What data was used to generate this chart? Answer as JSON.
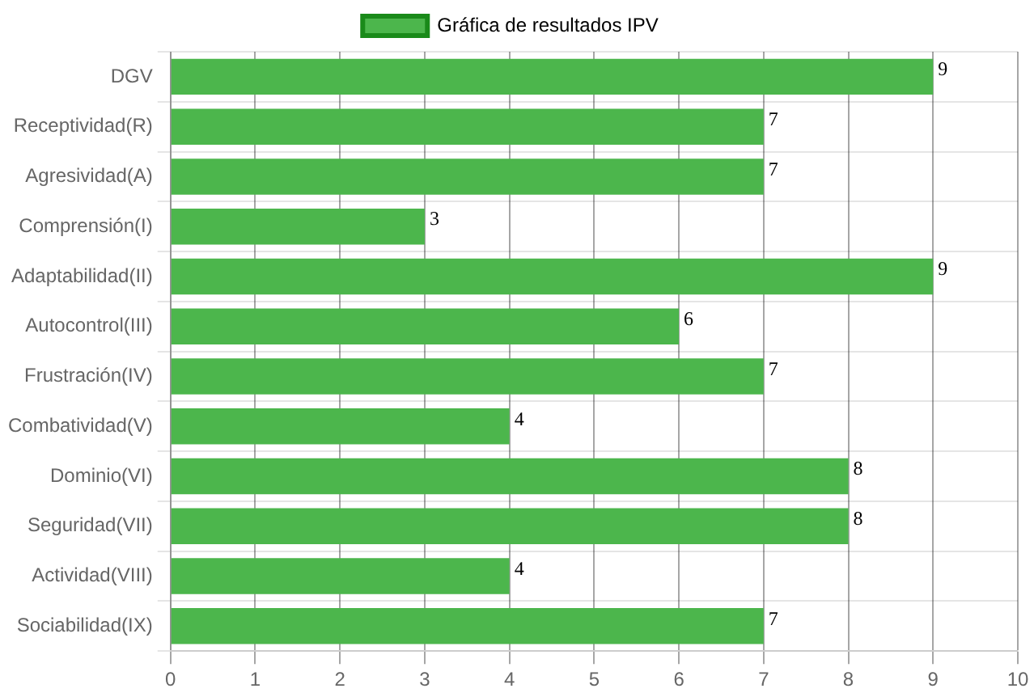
{
  "chart_data": {
    "type": "bar",
    "orientation": "horizontal",
    "categories": [
      "DGV",
      "Receptividad(R)",
      "Agresividad(A)",
      "Comprensión(I)",
      "Adaptabilidad(II)",
      "Autocontrol(III)",
      "Frustración(IV)",
      "Combatividad(V)",
      "Dominio(VI)",
      "Seguridad(VII)",
      "Actividad(VIII)",
      "Sociabilidad(IX)"
    ],
    "series": [
      {
        "name": "Gráfica de resultados IPV",
        "color": "#4cb64c",
        "values": [
          9,
          7,
          7,
          3,
          9,
          6,
          7,
          4,
          8,
          8,
          4,
          7
        ]
      }
    ],
    "xlim": [
      0,
      10
    ],
    "xticks": [
      0,
      1,
      2,
      3,
      4,
      5,
      6,
      7,
      8,
      9,
      10
    ],
    "grid": true,
    "legend": "top",
    "data_labels": true
  }
}
